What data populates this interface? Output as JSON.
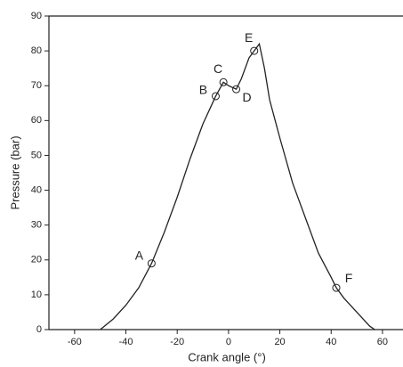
{
  "chart_data": {
    "type": "line",
    "xlabel": "Crank angle (°)",
    "ylabel": "Pressure (bar)",
    "x": [
      -50,
      -45,
      -40,
      -35,
      -30,
      -25,
      -20,
      -15,
      -10,
      -5,
      -2,
      0,
      3,
      5,
      8,
      10,
      12,
      14,
      16,
      20,
      25,
      30,
      35,
      40,
      42,
      45,
      50,
      55,
      57
    ],
    "series": [
      {
        "color": "#222222",
        "values": [
          0,
          3,
          7,
          12,
          19,
          28,
          38,
          49,
          59,
          67,
          71,
          70,
          69,
          72,
          78,
          80,
          82,
          75,
          66,
          55,
          42,
          32,
          22,
          15,
          12,
          9,
          5,
          1,
          0
        ]
      }
    ],
    "annotations": [
      {
        "label": "A",
        "x": -30,
        "y": 19
      },
      {
        "label": "B",
        "x": -5,
        "y": 67
      },
      {
        "label": "C",
        "x": -2,
        "y": 71
      },
      {
        "label": "D",
        "x": 3,
        "y": 69
      },
      {
        "label": "E",
        "x": 10,
        "y": 80
      },
      {
        "label": "F",
        "x": 42,
        "y": 12
      }
    ],
    "xlim": [
      -70,
      68
    ],
    "ylim": [
      0,
      90
    ],
    "xticks": [
      -60,
      -40,
      -20,
      0,
      20,
      40,
      60
    ],
    "yticks": [
      0,
      10,
      20,
      30,
      40,
      50,
      60,
      70,
      80,
      90
    ],
    "grid": false
  }
}
